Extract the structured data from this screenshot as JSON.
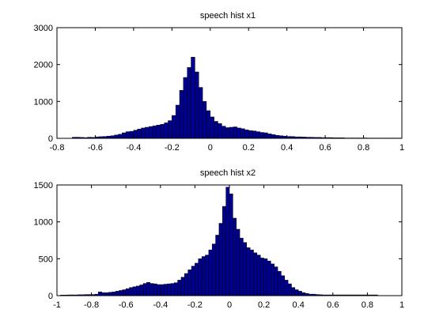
{
  "chart_data": [
    {
      "type": "bar",
      "title": "speech hist x1",
      "xlabel": "",
      "ylabel": "",
      "xlim": [
        -0.8,
        1
      ],
      "ylim": [
        0,
        3000
      ],
      "xticks": [
        "-0.8",
        "-0.6",
        "-0.4",
        "-0.2",
        "0",
        "0.2",
        "0.4",
        "0.6",
        "0.8",
        "1"
      ],
      "xtick_values": [
        -0.8,
        -0.6,
        -0.4,
        -0.2,
        0,
        0.2,
        0.4,
        0.6,
        0.8,
        1
      ],
      "yticks": [
        "0",
        "1000",
        "2000",
        "3000"
      ],
      "ytick_values": [
        0,
        1000,
        2000,
        3000
      ],
      "bin_start": -0.72,
      "bin_width": 0.02,
      "values": [
        30,
        30,
        25,
        20,
        30,
        25,
        40,
        45,
        50,
        60,
        70,
        90,
        110,
        150,
        180,
        190,
        220,
        250,
        280,
        300,
        320,
        340,
        360,
        380,
        420,
        480,
        620,
        900,
        1300,
        1650,
        1920,
        2200,
        1800,
        1380,
        1000,
        750,
        580,
        460,
        400,
        330,
        290,
        300,
        310,
        280,
        260,
        230,
        210,
        200,
        180,
        160,
        150,
        120,
        100,
        80,
        70,
        60,
        50,
        50,
        40,
        40,
        35,
        30,
        30,
        25,
        25,
        20,
        20,
        20,
        15,
        15,
        15,
        10,
        10,
        10,
        10,
        10,
        10,
        8,
        8,
        8,
        8,
        8,
        8,
        8,
        8,
        8,
        8,
        8
      ]
    },
    {
      "type": "bar",
      "title": "speech hist x2",
      "xlabel": "",
      "ylabel": "",
      "xlim": [
        -1,
        1
      ],
      "ylim": [
        0,
        1500
      ],
      "xticks": [
        "-1",
        "-0.8",
        "-0.6",
        "-0.4",
        "-0.2",
        "0",
        "0.2",
        "0.4",
        "0.6",
        "0.8",
        "1"
      ],
      "xtick_values": [
        -1,
        -0.8,
        -0.6,
        -0.4,
        -0.2,
        0,
        0.2,
        0.4,
        0.6,
        0.8,
        1
      ],
      "yticks": [
        "0",
        "500",
        "1000",
        "1500"
      ],
      "ytick_values": [
        0,
        500,
        1000,
        1500
      ],
      "bin_start": -0.98,
      "bin_width": 0.02,
      "values": [
        8,
        8,
        10,
        10,
        10,
        12,
        12,
        15,
        15,
        15,
        20,
        50,
        40,
        40,
        45,
        50,
        60,
        70,
        80,
        95,
        110,
        120,
        130,
        145,
        165,
        180,
        165,
        160,
        150,
        150,
        155,
        160,
        165,
        175,
        210,
        250,
        300,
        350,
        400,
        440,
        500,
        530,
        550,
        620,
        700,
        820,
        980,
        1210,
        1470,
        1380,
        1050,
        900,
        780,
        720,
        650,
        620,
        580,
        550,
        510,
        500,
        470,
        430,
        390,
        330,
        270,
        210,
        160,
        110,
        80,
        60,
        40,
        30,
        20,
        20,
        15,
        12,
        10,
        10,
        10,
        10,
        10,
        10,
        10,
        10,
        10,
        10,
        10,
        10,
        10,
        10,
        10,
        10
      ]
    }
  ]
}
